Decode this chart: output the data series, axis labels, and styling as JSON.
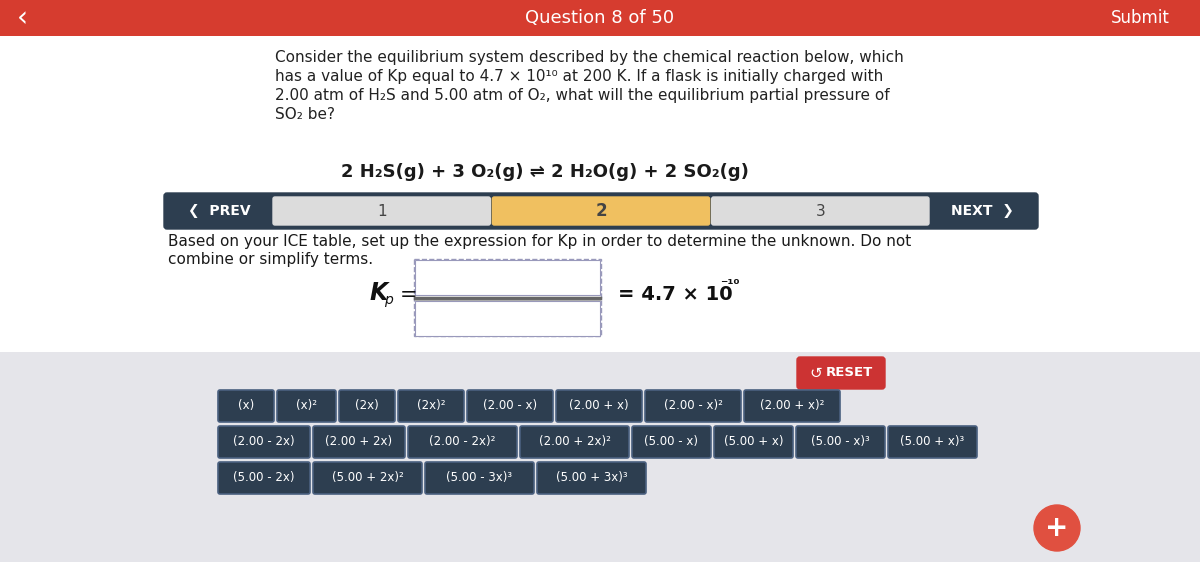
{
  "title_bar_color": "#d63c2f",
  "title_text": "Question 8 of 50",
  "submit_text": "Submit",
  "background_white": "#ffffff",
  "background_gray": "#e5e5ea",
  "nav_bar_color": "#2d3e50",
  "nav_highlight_color": "#f0c060",
  "question_lines": [
    "Consider the equilibrium system described by the chemical reaction below, which",
    "has a value of Kp equal to 4.7 × 10¹⁰ at 200 K. If a flask is initially charged with",
    "2.00 atm of H₂S and 5.00 atm of O₂, what will the equilibrium partial pressure of",
    "SO₂ be?"
  ],
  "reaction_text": "2 H₂S(g) + 3 O₂(g) ⇌ 2 H₂O(g) + 2 SO₂(g)",
  "instruction_lines": [
    "Based on your ICE table, set up the expression for Kp in order to determine the unknown. Do not",
    "combine or simplify terms."
  ],
  "reset_color": "#cc3333",
  "button_color": "#2d3e50",
  "button_text_color": "#ffffff",
  "button_border_color": "#4a6080",
  "buttons_row1": [
    "(x)",
    "(x)²",
    "(2x)",
    "(2x)²",
    "(2.00 - x)",
    "(2.00 + x)",
    "(2.00 - x)²",
    "(2.00 + x)²"
  ],
  "buttons_row2": [
    "(2.00 - 2x)",
    "(2.00 + 2x)",
    "(2.00 - 2x)²",
    "(2.00 + 2x)²",
    "(5.00 - x)",
    "(5.00 + x)",
    "(5.00 - x)³",
    "(5.00 + x)³"
  ],
  "buttons_row3": [
    "(5.00 - 2x)",
    "(5.00 + 2x)²",
    "(5.00 - 3x)³",
    "(5.00 + 3x)³"
  ],
  "plus_button_color": "#e05040"
}
